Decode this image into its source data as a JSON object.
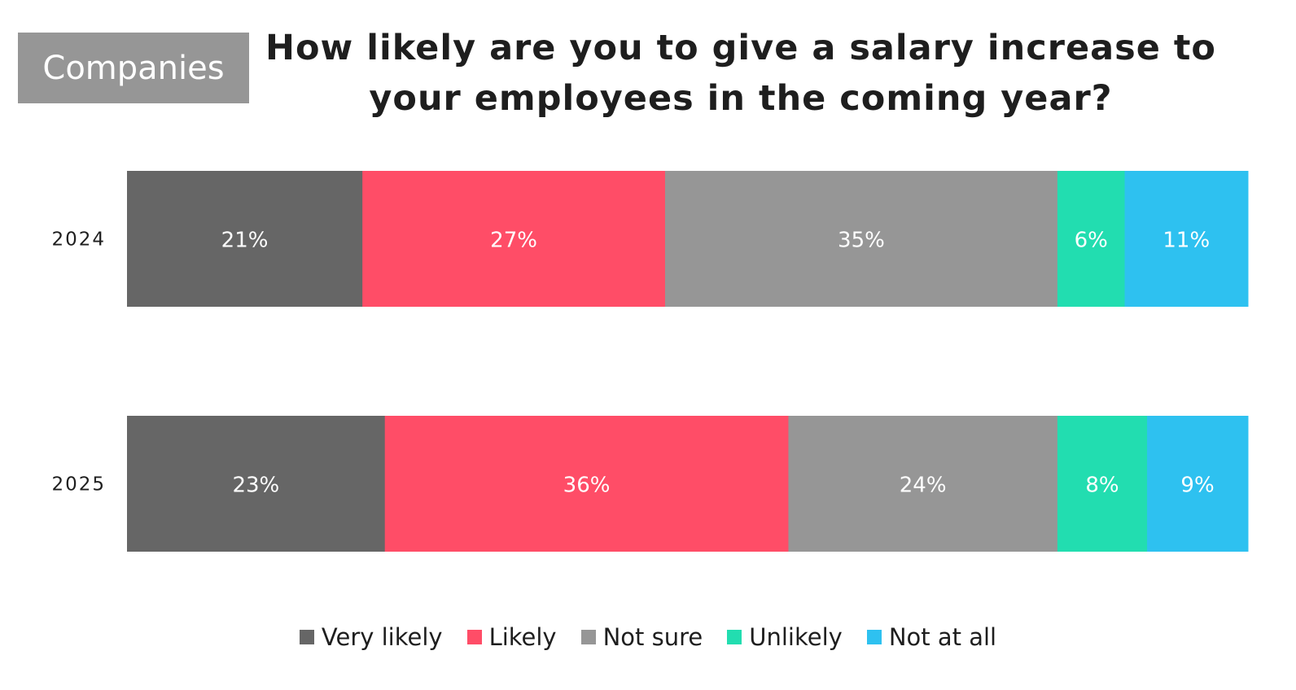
{
  "badge": {
    "label": "Companies"
  },
  "chart_data": {
    "type": "bar",
    "orientation": "horizontal",
    "stacked": true,
    "title_lines": [
      "How likely are you to give a salary increase to",
      "your employees in the coming year?"
    ],
    "categories": [
      "2024",
      "2025"
    ],
    "series": [
      {
        "name": "Very likely",
        "color": "#666666",
        "values": [
          21,
          23
        ],
        "labels": [
          "21%",
          "23%"
        ]
      },
      {
        "name": "Likely",
        "color": "#FF4D67",
        "values": [
          27,
          36
        ],
        "labels": [
          "27%",
          "36%"
        ]
      },
      {
        "name": "Not sure",
        "color": "#969696",
        "values": [
          35,
          24
        ],
        "labels": [
          "35%",
          "24%"
        ]
      },
      {
        "name": "Unlikely",
        "color": "#22DDB0",
        "values": [
          6,
          8
        ],
        "labels": [
          "6%",
          "8%"
        ]
      },
      {
        "name": "Not at all",
        "color": "#2EC1F0",
        "values": [
          11,
          9
        ],
        "labels": [
          "11%",
          "9%"
        ]
      }
    ],
    "legend_position": "bottom",
    "grid": false
  }
}
